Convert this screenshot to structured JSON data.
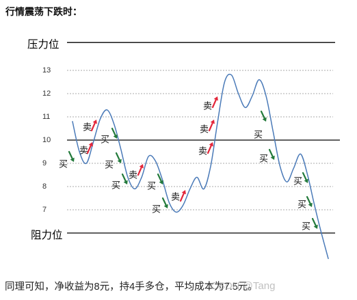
{
  "colors": {
    "line": "#4a7ab8",
    "buy": "#237a3b",
    "sell": "#e3263a",
    "grid": "#aaaaaa",
    "reference": "#000000"
  },
  "conclusion": "同理可知，净收益为8元，持4手多仓，平均成本为7.5元。",
  "watermark": "CSDN @Tang",
  "chart_data": {
    "type": "line",
    "title": "行情震荡下跌时：",
    "ylim": [
      4.5,
      14.5
    ],
    "yticks": [
      13,
      12,
      11,
      10,
      9,
      8,
      7
    ],
    "grid": "dashed",
    "emphasized_level": 10,
    "reference_lines": [
      {
        "label": "压力位",
        "value": 14.2
      },
      {
        "label": "阻力位",
        "value": 6.0
      }
    ],
    "series": [
      {
        "values": [
          10.8,
          9.5,
          9.0,
          9.9,
          10.9,
          11.3,
          10.7,
          9.6,
          8.4,
          7.9,
          8.4,
          9.3,
          9.1,
          8.3,
          7.3,
          6.9,
          7.2,
          7.9,
          8.4,
          7.9,
          8.9,
          10.8,
          12.5,
          12.8,
          12.0,
          11.4,
          11.9,
          12.6,
          11.9,
          10.4,
          8.9,
          8.2,
          8.8,
          9.4,
          8.5,
          7.2,
          6.0,
          4.9
        ]
      }
    ],
    "annotations": [
      {
        "text": "买",
        "arrow": "down"
      },
      {
        "text": "卖",
        "arrow": "up"
      },
      {
        "text": "卖",
        "arrow": "up"
      },
      {
        "text": "买",
        "arrow": "down"
      },
      {
        "text": "买",
        "arrow": "down"
      },
      {
        "text": "买",
        "arrow": "down"
      },
      {
        "text": "卖",
        "arrow": "up"
      },
      {
        "text": "买",
        "arrow": "down"
      },
      {
        "text": "买",
        "arrow": "down"
      },
      {
        "text": "卖",
        "arrow": "up"
      },
      {
        "text": "卖",
        "arrow": "up"
      },
      {
        "text": "卖",
        "arrow": "up"
      },
      {
        "text": "卖",
        "arrow": "up"
      },
      {
        "text": "买",
        "arrow": "down"
      },
      {
        "text": "买",
        "arrow": "down"
      },
      {
        "text": "买",
        "arrow": "down"
      },
      {
        "text": "买",
        "arrow": "down"
      },
      {
        "text": "买",
        "arrow": "down"
      }
    ]
  }
}
